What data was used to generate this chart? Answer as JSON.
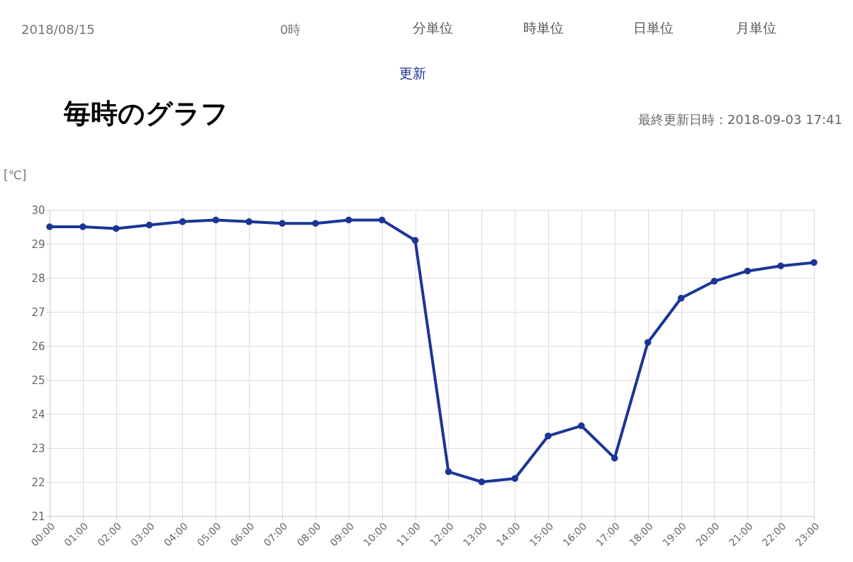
{
  "chart_data": {
    "type": "line",
    "title": "毎時のグラフ",
    "ylabel": "[℃]",
    "categories": [
      "00:00",
      "01:00",
      "02:00",
      "03:00",
      "04:00",
      "05:00",
      "06:00",
      "07:00",
      "08:00",
      "09:00",
      "10:00",
      "11:00",
      "12:00",
      "13:00",
      "14:00",
      "15:00",
      "16:00",
      "17:00",
      "18:00",
      "19:00",
      "20:00",
      "21:00",
      "22:00",
      "23:00"
    ],
    "series": [
      {
        "color": "#1c3596",
        "values": [
          29.5,
          29.5,
          29.45,
          29.55,
          29.65,
          29.7,
          29.65,
          29.6,
          29.6,
          29.7,
          29.7,
          29.1,
          22.3,
          22.0,
          22.1,
          23.35,
          23.65,
          22.7,
          26.1,
          27.4,
          27.9,
          28.2,
          28.35,
          28.45
        ]
      }
    ],
    "ylim": [
      21,
      30
    ],
    "yticks": [
      21,
      22,
      23,
      24,
      25,
      26,
      27,
      28,
      29,
      30
    ],
    "grid": true,
    "marker": "circle",
    "line_style": "solid",
    "legend": false,
    "annotations": [
      "2018/08/15",
      "0時",
      "分単位",
      "時単位",
      "日単位",
      "月単位",
      "更新",
      "最終更新日時：2018-09-03 17:41"
    ]
  }
}
